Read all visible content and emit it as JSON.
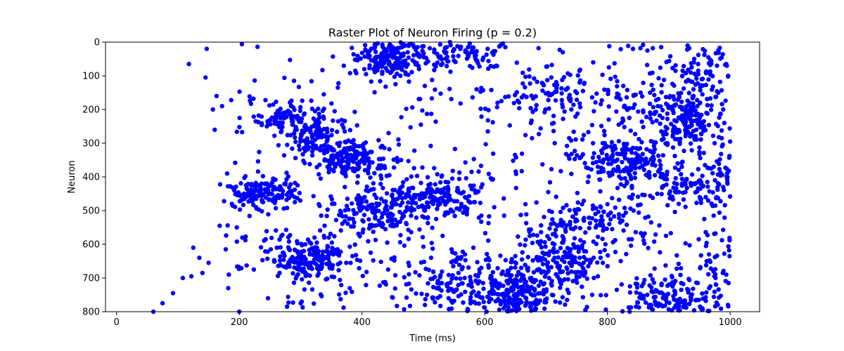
{
  "chart_data": {
    "type": "scatter",
    "title": "Raster Plot of Neuron Firing (p = 0.2)",
    "xlabel": "Time (ms)",
    "ylabel": "Neuron",
    "xlim": [
      -18,
      1048
    ],
    "ylim": [
      800,
      0
    ],
    "y_inverted": true,
    "x_ticks": [
      0,
      200,
      400,
      600,
      800,
      1000
    ],
    "y_ticks": [
      0,
      100,
      200,
      300,
      400,
      500,
      600,
      700,
      800
    ],
    "grid": false,
    "legend": "none",
    "marker": "circle",
    "color": "#0000ff",
    "point_source": "individual spike coordinates are too dense to read; points are generated from the clusters below",
    "clusters": [
      {
        "x": 445,
        "y": 45,
        "sx": 28,
        "sy": 28,
        "n": 180
      },
      {
        "x": 575,
        "y": 35,
        "sx": 45,
        "sy": 30,
        "n": 90
      },
      {
        "x": 700,
        "y": 160,
        "sx": 30,
        "sy": 35,
        "n": 70
      },
      {
        "x": 930,
        "y": 225,
        "sx": 28,
        "sy": 40,
        "n": 170
      },
      {
        "x": 950,
        "y": 90,
        "sx": 40,
        "sy": 45,
        "n": 90
      },
      {
        "x": 270,
        "y": 230,
        "sx": 22,
        "sy": 25,
        "n": 70
      },
      {
        "x": 325,
        "y": 270,
        "sx": 22,
        "sy": 35,
        "n": 110
      },
      {
        "x": 380,
        "y": 345,
        "sx": 32,
        "sy": 28,
        "n": 180
      },
      {
        "x": 830,
        "y": 350,
        "sx": 35,
        "sy": 32,
        "n": 180
      },
      {
        "x": 240,
        "y": 450,
        "sx": 30,
        "sy": 25,
        "n": 140
      },
      {
        "x": 420,
        "y": 505,
        "sx": 40,
        "sy": 40,
        "n": 170
      },
      {
        "x": 530,
        "y": 460,
        "sx": 40,
        "sy": 30,
        "n": 160
      },
      {
        "x": 310,
        "y": 645,
        "sx": 35,
        "sy": 35,
        "n": 190
      },
      {
        "x": 730,
        "y": 640,
        "sx": 35,
        "sy": 55,
        "n": 190
      },
      {
        "x": 560,
        "y": 710,
        "sx": 50,
        "sy": 55,
        "n": 140
      },
      {
        "x": 650,
        "y": 750,
        "sx": 35,
        "sy": 40,
        "n": 190
      },
      {
        "x": 905,
        "y": 760,
        "sx": 45,
        "sy": 35,
        "n": 160
      },
      {
        "x": 990,
        "y": 650,
        "sx": 20,
        "sy": 55,
        "n": 60
      },
      {
        "x": 780,
        "y": 530,
        "sx": 40,
        "sy": 30,
        "n": 70
      },
      {
        "x": 930,
        "y": 430,
        "sx": 40,
        "sy": 40,
        "n": 80
      },
      {
        "x": 990,
        "y": 360,
        "sx": 25,
        "sy": 50,
        "n": 60
      },
      {
        "x": 820,
        "y": 160,
        "sx": 40,
        "sy": 50,
        "n": 60
      }
    ],
    "background": {
      "x_min": 0,
      "x_max": 1000,
      "y_min": 0,
      "y_max": 800,
      "n": 520
    },
    "early_scatter": [
      [
        60,
        800
      ],
      [
        75,
        775
      ],
      [
        92,
        745
      ],
      [
        108,
        700
      ],
      [
        122,
        695
      ],
      [
        125,
        610
      ],
      [
        135,
        640
      ],
      [
        140,
        685
      ],
      [
        147,
        20
      ],
      [
        150,
        655
      ],
      [
        157,
        200
      ],
      [
        160,
        260
      ],
      [
        163,
        160
      ],
      [
        168,
        545
      ],
      [
        172,
        190
      ],
      [
        178,
        615
      ],
      [
        182,
        730
      ],
      [
        188,
        480
      ],
      [
        192,
        440
      ],
      [
        196,
        550
      ],
      [
        200,
        800
      ],
      [
        205,
        580
      ],
      [
        118,
        65
      ],
      [
        145,
        105
      ]
    ]
  }
}
